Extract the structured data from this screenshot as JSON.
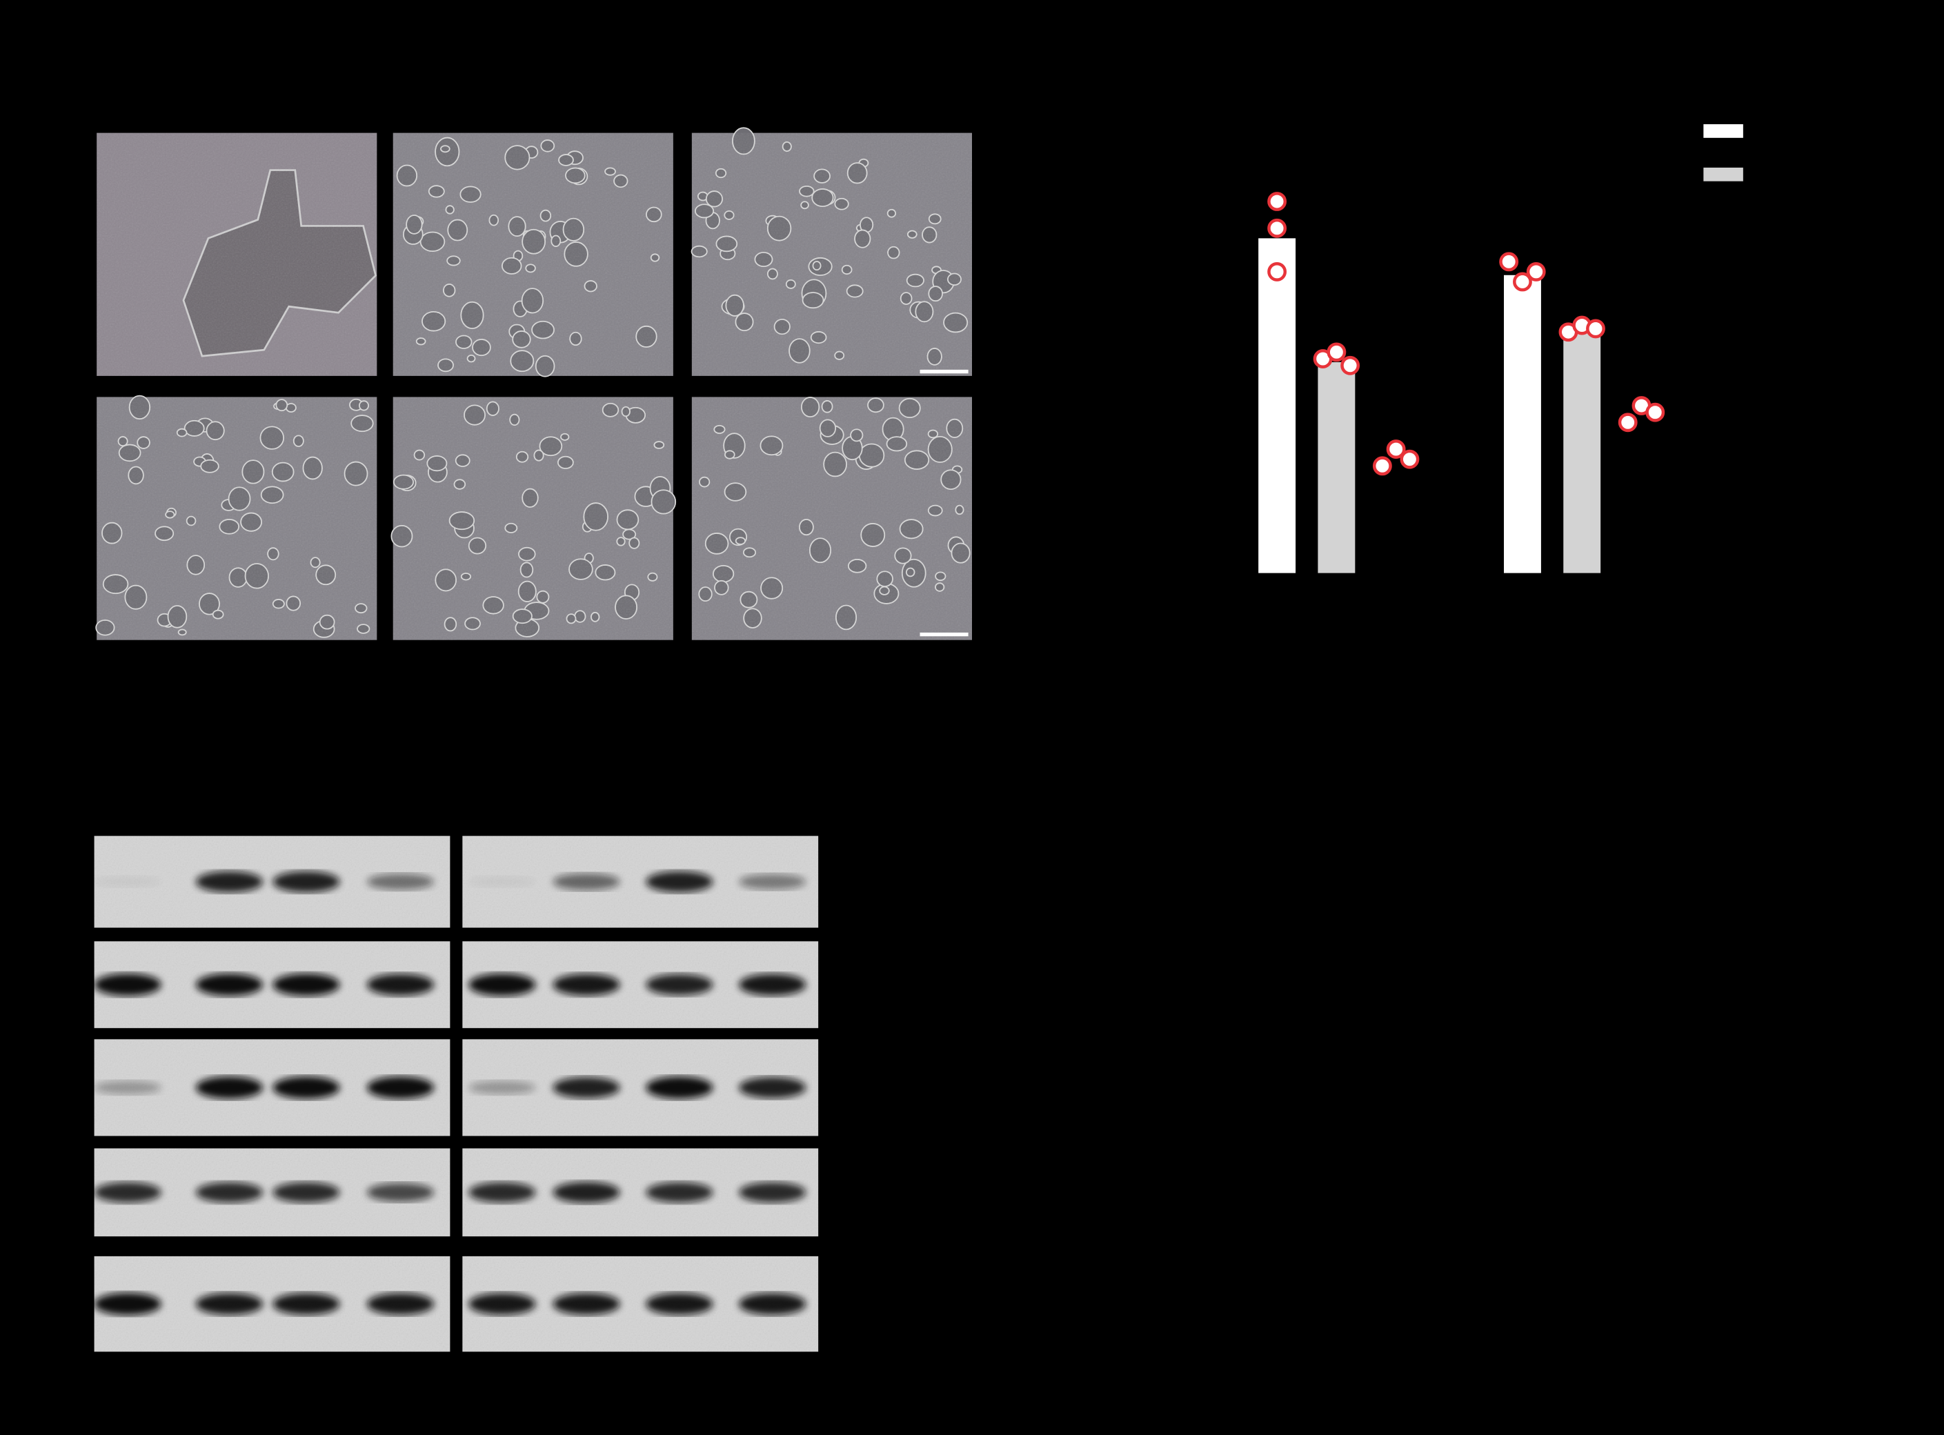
{
  "chart_data": {
    "type": "bar",
    "categories": [
      null,
      null
    ],
    "ylim": [
      0,
      1.5
    ],
    "series": [
      {
        "color": "#ffffff",
        "values": [
          1.0,
          0.89
        ],
        "points": [
          [
            1.11,
            1.03,
            0.9
          ],
          [
            0.93,
            0.87,
            0.9
          ]
        ]
      },
      {
        "color": "#d3d3d3",
        "values": [
          0.63,
          0.72
        ],
        "points": [
          [
            0.64,
            0.66,
            0.62
          ],
          [
            0.72,
            0.74,
            0.73
          ]
        ]
      },
      {
        "color": "#000000",
        "values": [
          0.33,
          0.47
        ],
        "points": [
          [
            0.32,
            0.37,
            0.34
          ],
          [
            0.45,
            0.5,
            0.48
          ]
        ]
      }
    ],
    "point_color": "#e8343a"
  }
}
